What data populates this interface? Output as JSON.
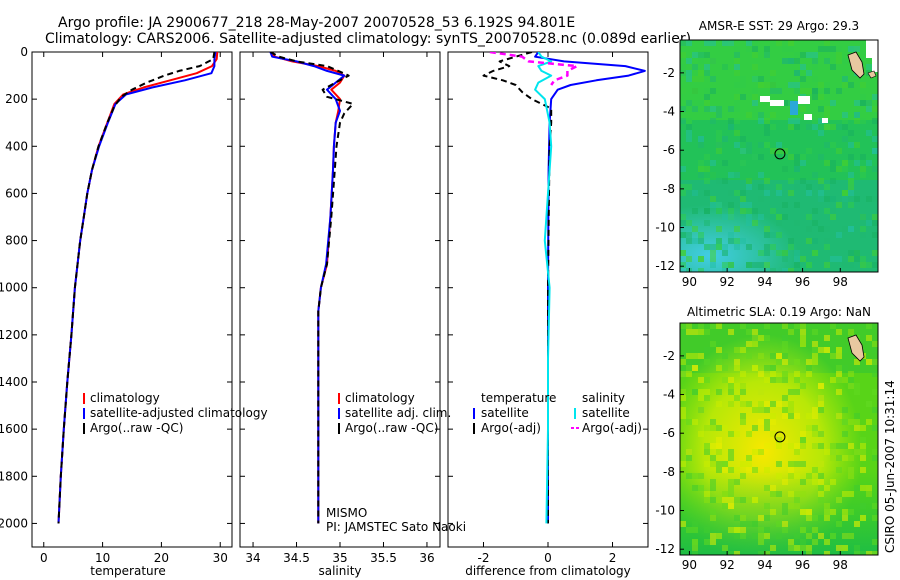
{
  "header": {
    "line1": "Argo profile: JA 2900677_218 28-May-2007 20070528_53 6.192S 94.801E",
    "line2": "Climatology: CARS2006. Satellite-adjusted climatology: synTS_20070528.nc (0.089d earlier)"
  },
  "colors": {
    "clim": "#ff0000",
    "sat": "#0000ff",
    "argo": "#000000",
    "sal_sat": "#00e5ee",
    "sal_argo": "#ff00ff"
  },
  "chart_data": [
    {
      "type": "line",
      "name": "temperature-panel",
      "xlabel": "temperature",
      "ylabel": "",
      "xlim": [
        -2,
        32
      ],
      "ylim": [
        2100,
        0
      ],
      "xticks": [
        0,
        10,
        20,
        30
      ],
      "yticks": [
        0,
        200,
        400,
        600,
        800,
        1000,
        1200,
        1400,
        1600,
        1800,
        2000
      ],
      "legend": [
        "climatology",
        "satellite-adjusted climatology",
        "Argo(..raw -QC)"
      ],
      "series": [
        {
          "name": "climatology",
          "depth": [
            0,
            30,
            60,
            90,
            120,
            150,
            180,
            220,
            300,
            400,
            500,
            600,
            700,
            800,
            1000,
            1200,
            1400,
            1600,
            1800,
            2000
          ],
          "values": [
            29.5,
            29.4,
            28.6,
            26.0,
            21.5,
            17.0,
            13.5,
            12.0,
            10.8,
            9.3,
            8.2,
            7.4,
            6.8,
            6.2,
            5.3,
            4.7,
            4.0,
            3.4,
            2.9,
            2.5
          ]
        },
        {
          "name": "satellite-adjusted climatology",
          "depth": [
            0,
            30,
            60,
            90,
            120,
            150,
            180,
            220,
            300,
            400,
            500,
            600,
            700,
            800,
            1000,
            1200,
            1400,
            1600,
            1800,
            2000
          ],
          "values": [
            29.2,
            29.0,
            29.0,
            28.5,
            24.0,
            18.5,
            14.0,
            12.2,
            10.9,
            9.4,
            8.2,
            7.4,
            6.8,
            6.2,
            5.3,
            4.7,
            4.0,
            3.4,
            2.9,
            2.5
          ]
        },
        {
          "name": "Argo(..raw -QC)",
          "depth": [
            0,
            30,
            60,
            80,
            100,
            130,
            160,
            190,
            230,
            300,
            400,
            500,
            600,
            700,
            800,
            1000,
            1200,
            1400,
            1600,
            1800,
            2000
          ],
          "values": [
            29.0,
            28.8,
            26.5,
            23.0,
            20.5,
            17.5,
            15.0,
            13.2,
            12.0,
            10.8,
            9.3,
            8.2,
            7.4,
            6.8,
            6.2,
            5.3,
            4.7,
            4.0,
            3.4,
            2.9,
            2.5
          ]
        }
      ]
    },
    {
      "type": "line",
      "name": "salinity-panel",
      "xlabel": "salinity",
      "ylabel": "",
      "xlim": [
        33.85,
        36.15
      ],
      "ylim": [
        2100,
        0
      ],
      "xticks": [
        34,
        34.5,
        35,
        35.5,
        36
      ],
      "legend": [
        "climatology",
        "satellite adj. clim.",
        "Argo(..raw -QC)"
      ],
      "annotation": [
        "MISMO",
        "PI: JAMSTEC Sato Naoki"
      ],
      "series": [
        {
          "name": "climatology",
          "depth": [
            0,
            20,
            40,
            60,
            80,
            100,
            130,
            160,
            200,
            250,
            300,
            400,
            500,
            700,
            900,
            1000,
            1100,
            1300,
            1600,
            2000
          ],
          "values": [
            34.2,
            34.25,
            34.45,
            34.75,
            34.95,
            35.05,
            35.0,
            34.9,
            35.0,
            34.98,
            34.95,
            34.93,
            34.92,
            34.89,
            34.85,
            34.78,
            34.75,
            34.75,
            34.75,
            34.75
          ]
        },
        {
          "name": "satellite adj. clim.",
          "depth": [
            0,
            20,
            40,
            60,
            80,
            100,
            130,
            160,
            200,
            250,
            300,
            400,
            500,
            700,
            900,
            1000,
            1100,
            1300,
            1600,
            2000
          ],
          "values": [
            34.2,
            34.22,
            34.5,
            34.7,
            34.85,
            35.05,
            34.95,
            34.85,
            34.95,
            35.0,
            34.95,
            34.93,
            34.92,
            34.89,
            34.84,
            34.78,
            34.75,
            34.75,
            34.75,
            34.75
          ]
        },
        {
          "name": "Argo(..raw -QC)",
          "depth": [
            0,
            20,
            40,
            60,
            80,
            100,
            130,
            160,
            190,
            220,
            260,
            300,
            400,
            500,
            700,
            900,
            1000,
            1100,
            1300,
            1600,
            2000
          ],
          "values": [
            34.2,
            34.3,
            34.5,
            34.85,
            34.98,
            35.1,
            34.95,
            34.8,
            34.85,
            35.15,
            35.05,
            35.0,
            34.96,
            34.94,
            34.9,
            34.85,
            34.78,
            34.75,
            34.75,
            34.75,
            34.75
          ]
        }
      ]
    },
    {
      "type": "line",
      "name": "difference-panel",
      "xlabel": "difference from climatology",
      "ylabel": "",
      "xlim": [
        -3.1,
        3.1
      ],
      "ylim": [
        2100,
        0
      ],
      "xticks": [
        -2,
        0,
        2
      ],
      "legend": [
        "temperature",
        "satellite",
        "Argo(-adj)",
        "salinity",
        "satellite",
        "Argo(-adj)"
      ],
      "series": [
        {
          "name": "temperature satellite",
          "depth": [
            0,
            20,
            40,
            60,
            80,
            100,
            120,
            140,
            160,
            200,
            300,
            500,
            1000,
            1500,
            2000
          ],
          "values": [
            -0.3,
            -0.4,
            0.5,
            2.4,
            3.0,
            2.5,
            1.5,
            0.7,
            0.3,
            0.1,
            0.05,
            0.02,
            0.0,
            0.0,
            0.0
          ]
        },
        {
          "name": "temperature Argo(-adj)",
          "depth": [
            0,
            20,
            40,
            60,
            80,
            100,
            120,
            140,
            170,
            200,
            240,
            300,
            400,
            600,
            1000,
            1500,
            2000
          ],
          "values": [
            -0.5,
            -1.0,
            -1.5,
            -1.2,
            -1.7,
            -2.0,
            -1.4,
            -1.0,
            -0.8,
            -0.5,
            0.1,
            0.1,
            0.05,
            0.03,
            0.0,
            0.0,
            0.0
          ]
        },
        {
          "name": "salinity satellite",
          "depth": [
            0,
            20,
            40,
            60,
            80,
            100,
            130,
            160,
            200,
            300,
            400,
            600,
            800,
            1000,
            1300,
            1600,
            2000
          ],
          "values": [
            -0.3,
            -0.2,
            0.1,
            -0.3,
            -0.2,
            0.1,
            -0.3,
            -0.4,
            -0.1,
            0.05,
            0.1,
            0.0,
            -0.1,
            0.05,
            0.0,
            0.0,
            -0.05
          ]
        },
        {
          "name": "salinity Argo(-adj)",
          "depth": [
            0,
            20,
            40,
            60,
            80,
            100,
            120,
            140
          ],
          "values": [
            -1.8,
            -0.8,
            -0.6,
            0.9,
            0.6,
            0.6,
            0.2,
            0.1
          ]
        }
      ]
    },
    {
      "type": "heatmap",
      "name": "sst-map",
      "title": "AMSR-E SST: 29 Argo: 29.3",
      "xlim": [
        89.5,
        100
      ],
      "ylim": [
        -12.3,
        -0.3
      ],
      "xticks": [
        90,
        92,
        94,
        96,
        98
      ],
      "yticks": [
        -2,
        -4,
        -6,
        -8,
        -10,
        -12
      ],
      "marker": {
        "lon": 94.8,
        "lat": -6.19
      }
    },
    {
      "type": "heatmap",
      "name": "sla-map",
      "title": "Altimetric SLA: 0.19 Argo: NaN",
      "xlim": [
        89.5,
        100
      ],
      "ylim": [
        -12.3,
        -0.3
      ],
      "xticks": [
        90,
        92,
        94,
        96,
        98
      ],
      "yticks": [
        -2,
        -4,
        -6,
        -8,
        -10,
        -12
      ],
      "marker": {
        "lon": 94.8,
        "lat": -6.19
      }
    }
  ],
  "footer": {
    "stamp": "CSIRO 05-Jun-2007 10:31:14"
  }
}
